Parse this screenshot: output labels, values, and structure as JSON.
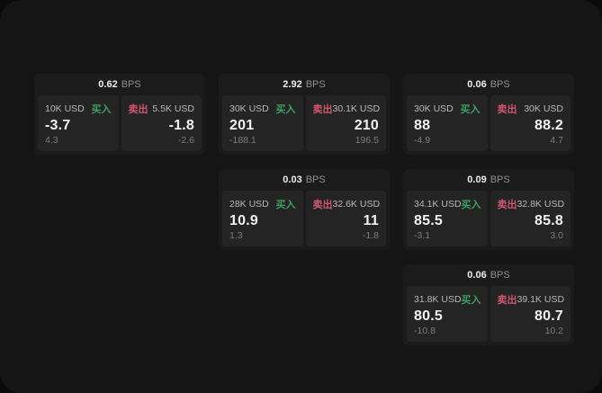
{
  "labels": {
    "bps_unit": "BPS",
    "buy": "买入",
    "sell": "卖出"
  },
  "colors": {
    "outside_bg": "#0b0b0b",
    "window_bg": "#151515",
    "card_bg": "#1b1b1b",
    "panel_bg": "#242424",
    "buy_green": "#3f9e62",
    "sell_red": "#d25670",
    "value_text": "#f2f2f2",
    "amount_text": "#b9b9b9",
    "sub_text": "#7d7d7d"
  },
  "cards": [
    {
      "bps": "0.62",
      "buy": {
        "amount": "10K USD",
        "value": "-3.7",
        "sub": "4.3"
      },
      "sell": {
        "amount": "5.5K USD",
        "value": "-1.8",
        "sub": "-2.6"
      }
    },
    {
      "bps": "2.92",
      "buy": {
        "amount": "30K USD",
        "value": "201",
        "sub": "-188.1"
      },
      "sell": {
        "amount": "30.1K USD",
        "value": "210",
        "sub": "196.5"
      }
    },
    {
      "bps": "0.06",
      "buy": {
        "amount": "30K USD",
        "value": "88",
        "sub": "-4.9"
      },
      "sell": {
        "amount": "30K USD",
        "value": "88.2",
        "sub": "4.7"
      }
    },
    {
      "bps": "0.03",
      "buy": {
        "amount": "28K USD",
        "value": "10.9",
        "sub": "1.3"
      },
      "sell": {
        "amount": "32.6K USD",
        "value": "11",
        "sub": "-1.8"
      }
    },
    {
      "bps": "0.09",
      "buy": {
        "amount": "34.1K USD",
        "value": "85.5",
        "sub": "-3.1"
      },
      "sell": {
        "amount": "32.8K USD",
        "value": "85.8",
        "sub": "3.0"
      }
    },
    {
      "bps": "0.06",
      "buy": {
        "amount": "31.8K USD",
        "value": "80.5",
        "sub": "-10.8"
      },
      "sell": {
        "amount": "39.1K USD",
        "value": "80.7",
        "sub": "10.2"
      }
    }
  ]
}
